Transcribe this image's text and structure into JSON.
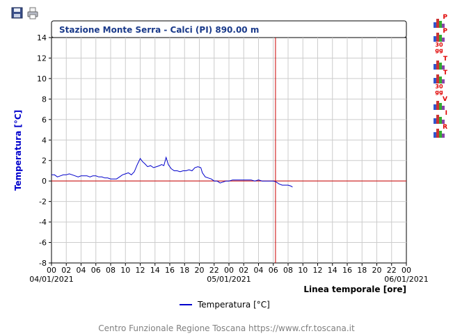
{
  "toolbar": {
    "save_icon": "floppy-disk-icon",
    "print_icon": "printer-icon"
  },
  "side_buttons": [
    {
      "name": "chart-button-p",
      "tag": "P",
      "sub": ""
    },
    {
      "name": "chart-button-p30",
      "tag": "P",
      "sub": "30 gg"
    },
    {
      "name": "chart-button-t",
      "tag": "T",
      "sub": ""
    },
    {
      "name": "chart-button-t30",
      "tag": "T",
      "sub": "30 gg"
    },
    {
      "name": "chart-button-v",
      "tag": "V",
      "sub": ""
    },
    {
      "name": "chart-button-i",
      "tag": "I",
      "sub": ""
    },
    {
      "name": "chart-button-r",
      "tag": "R",
      "sub": ""
    }
  ],
  "footer": "Centro Funzionale Regione Toscana https://www.cfr.toscana.it",
  "chart_data": {
    "type": "line",
    "title": "Stazione Monte Serra - Calci (PI) 890.00 m",
    "ylabel": "Temperatura [°C]",
    "xlabel": "Linea temporale [ore]",
    "ylim": [
      -8,
      14
    ],
    "yticks": [
      -8,
      -6,
      -4,
      -2,
      0,
      2,
      4,
      6,
      8,
      10,
      12,
      14
    ],
    "xlim_hours": [
      0,
      48
    ],
    "xtick_labels": [
      "00",
      "02",
      "04",
      "06",
      "08",
      "10",
      "12",
      "14",
      "16",
      "18",
      "20",
      "22",
      "00",
      "02",
      "04",
      "06",
      "08",
      "10",
      "12",
      "14",
      "16",
      "18",
      "20",
      "22",
      "00"
    ],
    "date_labels": [
      {
        "hour": 0,
        "label": "04/01/2021"
      },
      {
        "hour": 24,
        "label": "05/01/2021"
      },
      {
        "hour": 48,
        "label": "06/01/2021"
      }
    ],
    "grid": true,
    "current_time_hour": 30.3,
    "zero_line": 0,
    "legend": {
      "position": "bottom",
      "label": "Temperatura [°C]"
    },
    "colors": {
      "series": "#0000cc",
      "marker": "#cc0000",
      "grid": "#cccccc",
      "title_text": "#1a3a8a",
      "ylabel_text": "#0000cc"
    },
    "series": [
      {
        "name": "Temperatura [°C]",
        "points": [
          [
            0.0,
            0.6
          ],
          [
            0.4,
            0.6
          ],
          [
            0.8,
            0.4
          ],
          [
            1.2,
            0.5
          ],
          [
            1.6,
            0.6
          ],
          [
            2.0,
            0.6
          ],
          [
            2.4,
            0.7
          ],
          [
            2.8,
            0.6
          ],
          [
            3.2,
            0.5
          ],
          [
            3.6,
            0.4
          ],
          [
            4.0,
            0.5
          ],
          [
            4.4,
            0.5
          ],
          [
            4.8,
            0.5
          ],
          [
            5.2,
            0.4
          ],
          [
            5.6,
            0.5
          ],
          [
            6.0,
            0.5
          ],
          [
            6.4,
            0.4
          ],
          [
            6.8,
            0.4
          ],
          [
            7.2,
            0.3
          ],
          [
            7.6,
            0.3
          ],
          [
            8.0,
            0.2
          ],
          [
            8.4,
            0.2
          ],
          [
            8.8,
            0.2
          ],
          [
            9.2,
            0.4
          ],
          [
            9.6,
            0.6
          ],
          [
            10.0,
            0.7
          ],
          [
            10.4,
            0.8
          ],
          [
            10.8,
            0.6
          ],
          [
            11.2,
            0.9
          ],
          [
            11.6,
            1.6
          ],
          [
            12.0,
            2.2
          ],
          [
            12.3,
            1.9
          ],
          [
            12.6,
            1.7
          ],
          [
            13.0,
            1.4
          ],
          [
            13.4,
            1.5
          ],
          [
            13.8,
            1.3
          ],
          [
            14.2,
            1.4
          ],
          [
            14.6,
            1.5
          ],
          [
            14.9,
            1.6
          ],
          [
            15.2,
            1.5
          ],
          [
            15.5,
            2.3
          ],
          [
            15.8,
            1.6
          ],
          [
            16.2,
            1.2
          ],
          [
            16.6,
            1.0
          ],
          [
            17.0,
            1.0
          ],
          [
            17.4,
            0.9
          ],
          [
            17.8,
            1.0
          ],
          [
            18.2,
            1.0
          ],
          [
            18.6,
            1.1
          ],
          [
            19.0,
            1.0
          ],
          [
            19.4,
            1.3
          ],
          [
            19.8,
            1.4
          ],
          [
            20.2,
            1.3
          ],
          [
            20.4,
            0.8
          ],
          [
            20.8,
            0.4
          ],
          [
            21.2,
            0.3
          ],
          [
            21.6,
            0.2
          ],
          [
            22.0,
            0.0
          ],
          [
            22.4,
            0.0
          ],
          [
            22.8,
            -0.2
          ],
          [
            23.2,
            -0.1
          ],
          [
            23.6,
            0.0
          ],
          [
            24.0,
            0.0
          ],
          [
            24.5,
            0.1
          ],
          [
            25.0,
            0.1
          ],
          [
            25.5,
            0.1
          ],
          [
            26.0,
            0.1
          ],
          [
            26.5,
            0.1
          ],
          [
            27.0,
            0.1
          ],
          [
            27.5,
            0.0
          ],
          [
            28.0,
            0.1
          ],
          [
            28.5,
            0.0
          ],
          [
            29.0,
            0.0
          ],
          [
            29.5,
            0.0
          ],
          [
            30.0,
            0.0
          ],
          [
            30.4,
            -0.1
          ],
          [
            30.8,
            -0.3
          ],
          [
            31.2,
            -0.4
          ],
          [
            31.6,
            -0.4
          ],
          [
            32.0,
            -0.4
          ],
          [
            32.4,
            -0.5
          ],
          [
            32.6,
            -0.6
          ]
        ]
      }
    ]
  }
}
